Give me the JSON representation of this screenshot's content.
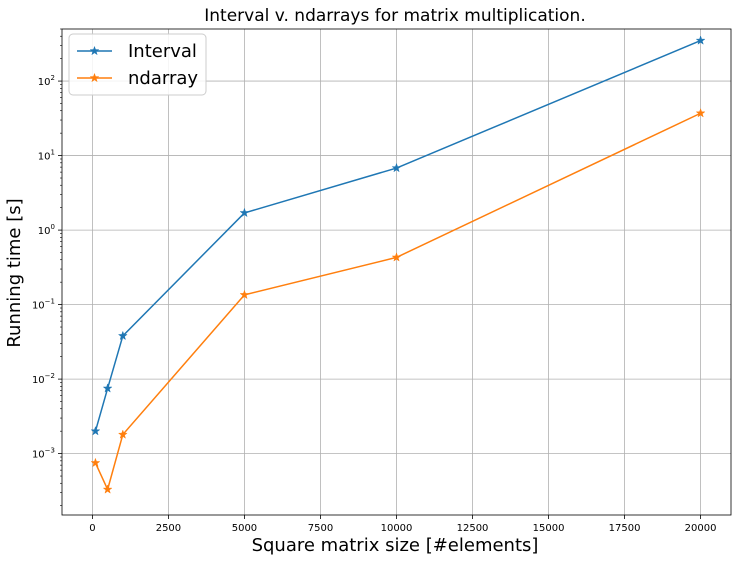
{
  "chart_data": {
    "type": "line",
    "title": "Interval v. ndarrays for matrix multiplication.",
    "xlabel": "Square matrix size [#elements]",
    "ylabel": "Running time [s]",
    "xscale": "linear",
    "yscale": "log",
    "xlim": [
      -1000,
      21000
    ],
    "ylim": [
      0.00015,
      500
    ],
    "xticks": [
      0,
      2500,
      5000,
      7500,
      10000,
      12500,
      15000,
      17500,
      20000
    ],
    "xtick_labels": [
      "0",
      "2500",
      "5000",
      "7500",
      "10000",
      "12500",
      "15000",
      "17500",
      "20000"
    ],
    "yticks": [
      0.001,
      0.01,
      0.1,
      1,
      10,
      100
    ],
    "ytick_labels": [
      {
        "base": "10",
        "exp": "−3"
      },
      {
        "base": "10",
        "exp": "−2"
      },
      {
        "base": "10",
        "exp": "−1"
      },
      {
        "base": "10",
        "exp": "0"
      },
      {
        "base": "10",
        "exp": "1"
      },
      {
        "base": "10",
        "exp": "2"
      }
    ],
    "grid": true,
    "legend_position": "top-left",
    "marker": "star",
    "series": [
      {
        "name": "Interval",
        "color": "#1f77b4",
        "x": [
          100,
          500,
          1000,
          5000,
          10000,
          20000
        ],
        "y": [
          0.002,
          0.0075,
          0.038,
          1.7,
          6.8,
          350
        ]
      },
      {
        "name": "ndarray",
        "color": "#ff7f0e",
        "x": [
          100,
          500,
          1000,
          5000,
          10000,
          20000
        ],
        "y": [
          0.00075,
          0.00033,
          0.0018,
          0.135,
          0.43,
          37
        ]
      }
    ]
  }
}
